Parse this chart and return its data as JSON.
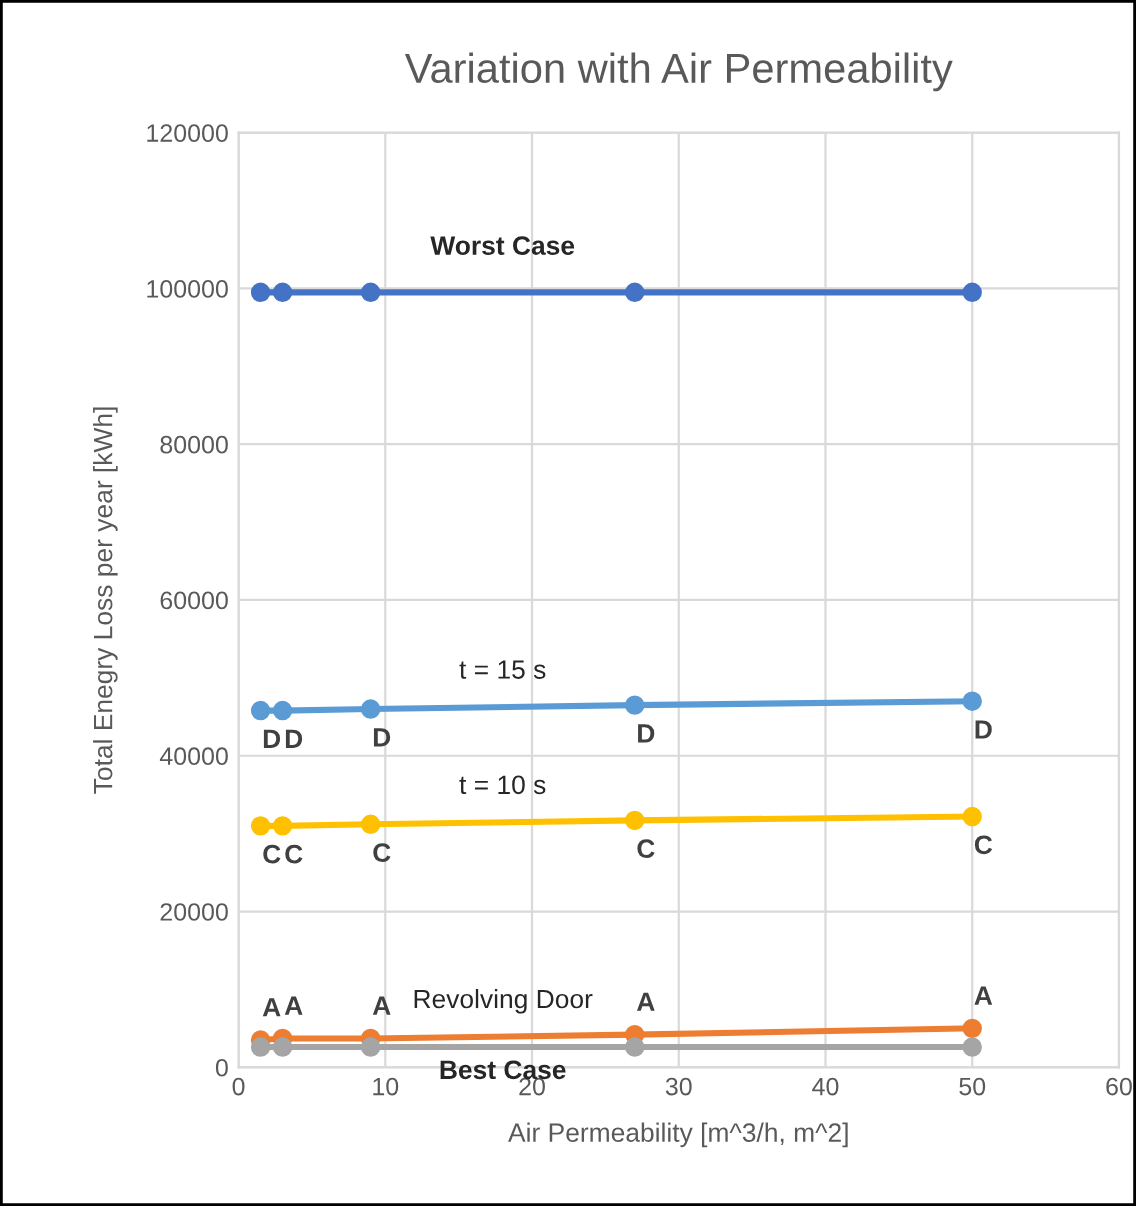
{
  "chart_data": {
    "type": "line",
    "title": "Variation with Air Permeability",
    "xlabel": "Air Permeability [m^3/h, m^2]",
    "ylabel": "Total Enegry Loss per year [kWh]",
    "x": [
      1.5,
      3,
      9,
      27,
      50
    ],
    "series": [
      {
        "name": "Worst Case",
        "color": "#4472c4",
        "values": [
          99500,
          99500,
          99500,
          99500,
          99500
        ]
      },
      {
        "name": "t = 15 s",
        "color": "#5b9bd5",
        "values": [
          45800,
          45800,
          46000,
          46500,
          47000
        ],
        "value_labels": [
          "D",
          "D",
          "D",
          "D",
          "D"
        ]
      },
      {
        "name": "t = 10 s",
        "color": "#ffc000",
        "values": [
          31000,
          31000,
          31200,
          31700,
          32200
        ],
        "value_labels": [
          "C",
          "C",
          "C",
          "C",
          "C"
        ]
      },
      {
        "name": "Revolving Door",
        "color": "#ed7d31",
        "values": [
          3500,
          3700,
          3700,
          4200,
          5000
        ],
        "value_labels": [
          "A",
          "A",
          "A",
          "A",
          "A"
        ]
      },
      {
        "name": "Best Case",
        "color": "#a5a5a5",
        "values": [
          2600,
          2600,
          2600,
          2600,
          2600
        ]
      }
    ],
    "xlim": [
      0,
      60
    ],
    "xticks": [
      0,
      10,
      20,
      30,
      40,
      50,
      60
    ],
    "ylim": [
      0,
      120000
    ],
    "yticks": [
      0,
      20000,
      40000,
      60000,
      80000,
      100000,
      120000
    ],
    "grid": true,
    "marker": "circle",
    "line_style": "solid"
  }
}
